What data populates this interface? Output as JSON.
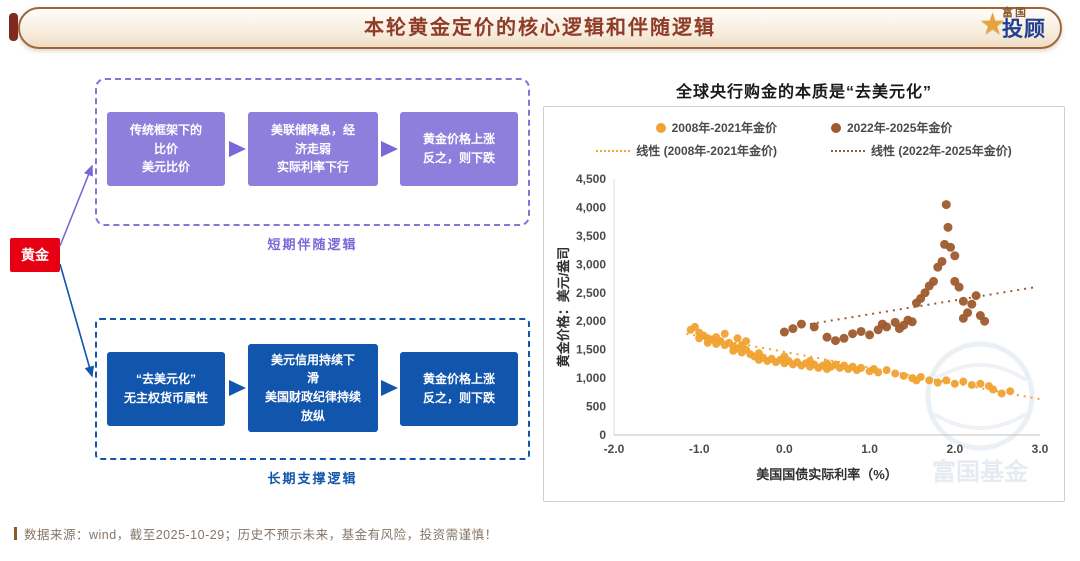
{
  "header": {
    "title": "本轮黄金定价的核心逻辑和伴随逻辑",
    "logo_star": "★",
    "logo_brand_top": "富国",
    "logo_brand_main": "投顾"
  },
  "diagram": {
    "root": "黄金",
    "short_term": {
      "label": "短期伴随逻辑",
      "color": "#7B68D8",
      "boxes": [
        "传统框架下的\n比价\n美元比价",
        "美联储降息，经\n济走弱\n实际利率下行",
        "黄金价格上涨\n反之，则下跌"
      ]
    },
    "long_term": {
      "label": "长期支撑逻辑",
      "color": "#1155AD",
      "boxes": [
        "“去美元化”\n无主权货币属性",
        "美元信用持续下\n滑\n美国财政纪律持续\n放纵",
        "黄金价格上涨\n反之，则下跌"
      ]
    }
  },
  "chart_data": {
    "type": "scatter",
    "title": "全球央行购金的本质是“去美元化”",
    "xlabel": "美国国债实际利率（%）",
    "ylabel": "黄金价格：美元/盎司",
    "xlim": [
      -2,
      3
    ],
    "ylim": [
      0,
      4500
    ],
    "x_ticks": [
      -2,
      -1,
      0,
      1,
      2,
      3
    ],
    "x_tick_labels": [
      "-2.0",
      "-1.0",
      "0.0",
      "1.0",
      "2.0",
      "3.0"
    ],
    "y_ticks": [
      0,
      500,
      1000,
      1500,
      2000,
      2500,
      3000,
      3500,
      4000,
      4500
    ],
    "y_tick_labels": [
      "0",
      "500",
      "1,000",
      "1,500",
      "2,000",
      "2,500",
      "3,000",
      "3,500",
      "4,000",
      "4,500"
    ],
    "grid": false,
    "legend_position": "top",
    "series": [
      {
        "name": "2008年-2021年金价",
        "type": "scatter",
        "color": "#F0A232",
        "r": 4,
        "points": [
          [
            -1.1,
            1850
          ],
          [
            -1.05,
            1900
          ],
          [
            -1.0,
            1800
          ],
          [
            -1.0,
            1700
          ],
          [
            -0.95,
            1750
          ],
          [
            -0.9,
            1700
          ],
          [
            -0.9,
            1620
          ],
          [
            -0.85,
            1680
          ],
          [
            -0.8,
            1720
          ],
          [
            -0.8,
            1600
          ],
          [
            -0.75,
            1650
          ],
          [
            -0.7,
            1780
          ],
          [
            -0.7,
            1580
          ],
          [
            -0.65,
            1620
          ],
          [
            -0.6,
            1560
          ],
          [
            -0.6,
            1480
          ],
          [
            -0.55,
            1700
          ],
          [
            -0.55,
            1520
          ],
          [
            -0.5,
            1580
          ],
          [
            -0.5,
            1450
          ],
          [
            -0.45,
            1650
          ],
          [
            -0.45,
            1500
          ],
          [
            -0.4,
            1420
          ],
          [
            -0.35,
            1380
          ],
          [
            -0.3,
            1440
          ],
          [
            -0.3,
            1320
          ],
          [
            -0.25,
            1360
          ],
          [
            -0.2,
            1300
          ],
          [
            -0.15,
            1340
          ],
          [
            -0.1,
            1280
          ],
          [
            -0.05,
            1320
          ],
          [
            0,
            1260
          ],
          [
            0,
            1380
          ],
          [
            0.05,
            1300
          ],
          [
            0.1,
            1240
          ],
          [
            0.15,
            1280
          ],
          [
            0.2,
            1220
          ],
          [
            0.25,
            1260
          ],
          [
            0.3,
            1200
          ],
          [
            0.3,
            1300
          ],
          [
            0.35,
            1240
          ],
          [
            0.4,
            1180
          ],
          [
            0.45,
            1220
          ],
          [
            0.5,
            1260
          ],
          [
            0.5,
            1160
          ],
          [
            0.55,
            1200
          ],
          [
            0.6,
            1240
          ],
          [
            0.65,
            1180
          ],
          [
            0.7,
            1220
          ],
          [
            0.75,
            1160
          ],
          [
            0.8,
            1200
          ],
          [
            0.85,
            1140
          ],
          [
            0.9,
            1180
          ],
          [
            1.0,
            1120
          ],
          [
            1.05,
            1160
          ],
          [
            1.1,
            1100
          ],
          [
            1.2,
            1140
          ],
          [
            1.3,
            1080
          ],
          [
            1.4,
            1040
          ],
          [
            1.5,
            1000
          ],
          [
            1.55,
            960
          ],
          [
            1.6,
            1020
          ],
          [
            1.7,
            960
          ],
          [
            1.8,
            920
          ],
          [
            1.9,
            960
          ],
          [
            2.0,
            900
          ],
          [
            2.1,
            940
          ],
          [
            2.2,
            880
          ],
          [
            2.3,
            900
          ],
          [
            2.4,
            860
          ],
          [
            2.45,
            800
          ],
          [
            2.55,
            730
          ],
          [
            2.65,
            770
          ]
        ]
      },
      {
        "name": "2022年-2025年金价",
        "type": "scatter",
        "color": "#9E5B2E",
        "r": 4.5,
        "points": [
          [
            0.0,
            1810
          ],
          [
            0.1,
            1870
          ],
          [
            0.2,
            1950
          ],
          [
            0.35,
            1900
          ],
          [
            0.5,
            1720
          ],
          [
            0.6,
            1660
          ],
          [
            0.7,
            1700
          ],
          [
            0.8,
            1780
          ],
          [
            0.9,
            1820
          ],
          [
            1.0,
            1760
          ],
          [
            1.1,
            1850
          ],
          [
            1.15,
            1950
          ],
          [
            1.2,
            1900
          ],
          [
            1.3,
            1980
          ],
          [
            1.35,
            1870
          ],
          [
            1.4,
            1930
          ],
          [
            1.45,
            2020
          ],
          [
            1.5,
            1990
          ],
          [
            1.55,
            2320
          ],
          [
            1.6,
            2400
          ],
          [
            1.65,
            2500
          ],
          [
            1.7,
            2620
          ],
          [
            1.75,
            2700
          ],
          [
            1.8,
            2950
          ],
          [
            1.85,
            3050
          ],
          [
            1.88,
            3350
          ],
          [
            1.9,
            4050
          ],
          [
            1.92,
            3650
          ],
          [
            1.95,
            3300
          ],
          [
            2.0,
            3150
          ],
          [
            2.0,
            2700
          ],
          [
            2.05,
            2600
          ],
          [
            2.1,
            2350
          ],
          [
            2.1,
            2050
          ],
          [
            2.15,
            2150
          ],
          [
            2.2,
            2300
          ],
          [
            2.25,
            2450
          ],
          [
            2.3,
            2100
          ],
          [
            2.35,
            2000
          ]
        ]
      },
      {
        "name": "线性 (2008年-2021年金价)",
        "type": "trendline",
        "color": "#F0A232",
        "points": [
          [
            -1.15,
            1780
          ],
          [
            3.0,
            630
          ]
        ]
      },
      {
        "name": "线性 (2022年-2025年金价)",
        "type": "trendline",
        "color": "#9E5B2E",
        "points": [
          [
            0.3,
            1950
          ],
          [
            2.95,
            2600
          ]
        ]
      }
    ]
  },
  "watermark": "富国基金",
  "footer": {
    "text": "数据来源：wind，截至2025-10-29；历史不预示未来，基金有风险，投资需谨慎！"
  },
  "colors": {
    "banner_text": "#8E3B28",
    "accent_red": "#E60012",
    "purple": "#8F7FDC",
    "blue": "#1155AD",
    "orange": "#F0A232",
    "brown": "#9E5B2E"
  }
}
